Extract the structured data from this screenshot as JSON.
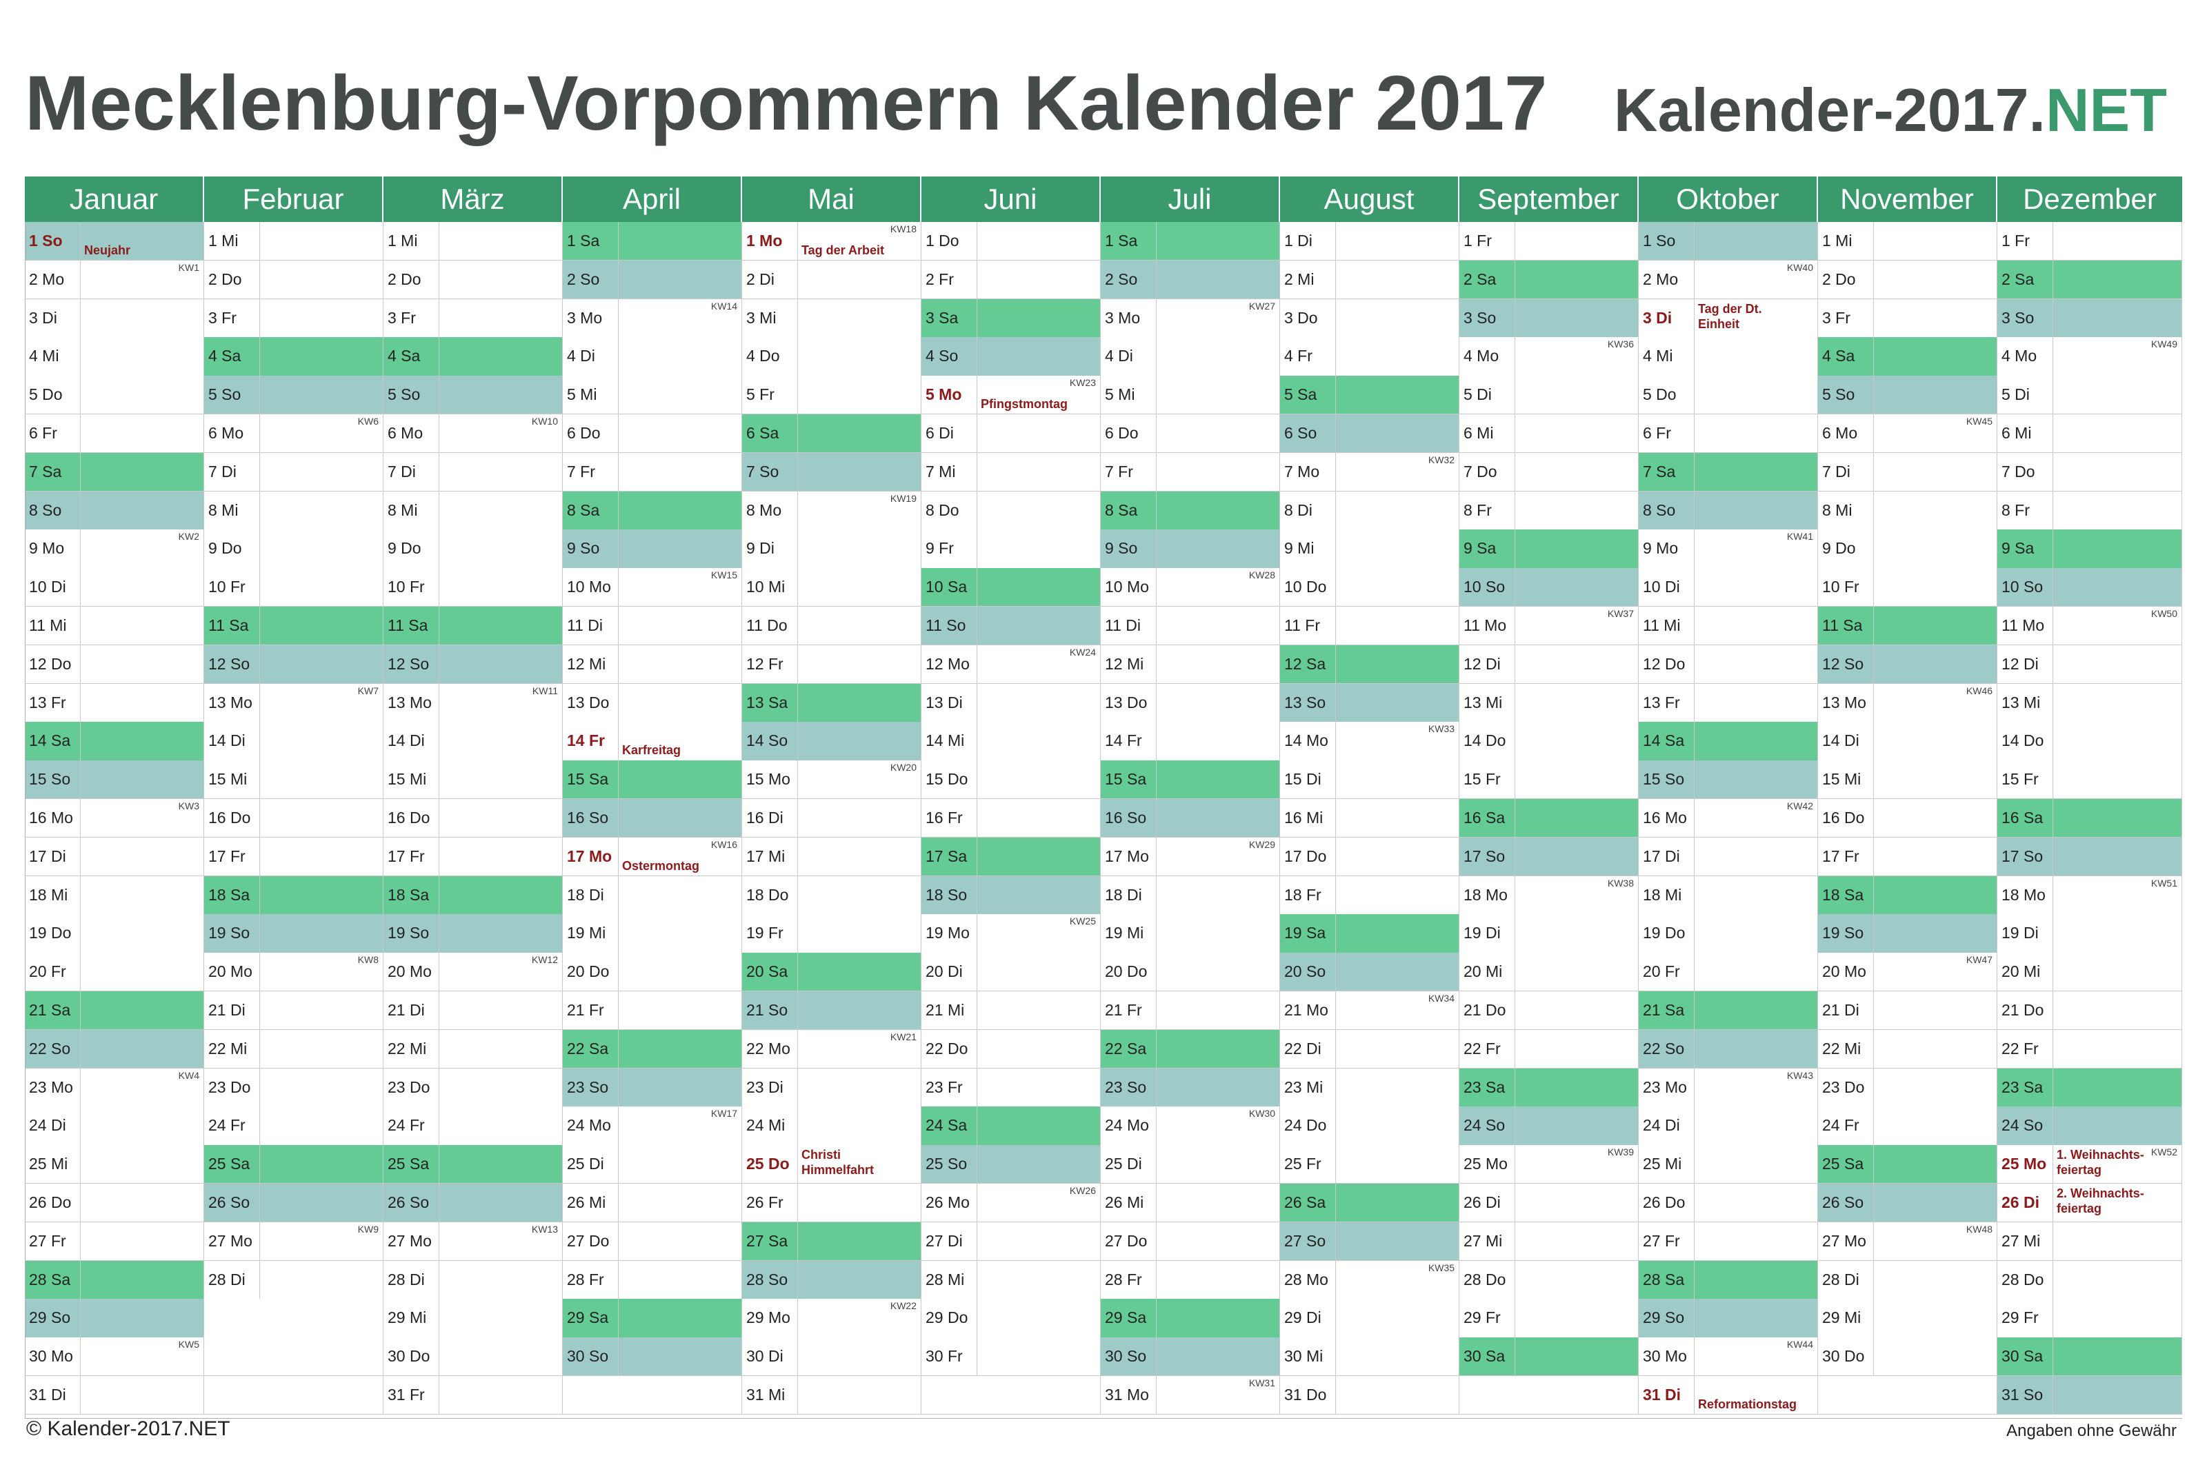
{
  "title": "Mecklenburg-Vorpommern Kalender 2017",
  "brand": {
    "prefix": "Kalender-2017.",
    "suffix": "NET"
  },
  "footer": {
    "copyright": "© Kalender-2017.NET",
    "disclaimer": "Angaben ohne Gewähr"
  },
  "colors": {
    "header": "#3a9a6d",
    "saturday": "#64cb95",
    "sunday": "#9ecbc8",
    "holiday_text": "#8b1a1a"
  },
  "year": 2017,
  "months": [
    {
      "name": "Januar",
      "days": 31,
      "start": 6
    },
    {
      "name": "Februar",
      "days": 28,
      "start": 2
    },
    {
      "name": "März",
      "days": 31,
      "start": 2
    },
    {
      "name": "April",
      "days": 30,
      "start": 5
    },
    {
      "name": "Mai",
      "days": 31,
      "start": 0
    },
    {
      "name": "Juni",
      "days": 30,
      "start": 3
    },
    {
      "name": "Juli",
      "days": 31,
      "start": 5
    },
    {
      "name": "August",
      "days": 31,
      "start": 1
    },
    {
      "name": "September",
      "days": 30,
      "start": 4
    },
    {
      "name": "Oktober",
      "days": 31,
      "start": 6
    },
    {
      "name": "November",
      "days": 30,
      "start": 2
    },
    {
      "name": "Dezember",
      "days": 31,
      "start": 4
    }
  ],
  "weekdays": [
    "Mo",
    "Di",
    "Mi",
    "Do",
    "Fr",
    "Sa",
    "So"
  ],
  "week_prefix": "KW",
  "holidays": [
    {
      "m": 0,
      "d": 1,
      "name": "Neujahr"
    },
    {
      "m": 3,
      "d": 14,
      "name": "Karfreitag"
    },
    {
      "m": 3,
      "d": 17,
      "name": "Ostermontag"
    },
    {
      "m": 4,
      "d": 1,
      "name": "Tag der Arbeit"
    },
    {
      "m": 4,
      "d": 25,
      "name": "Christi Himmelfahrt"
    },
    {
      "m": 5,
      "d": 5,
      "name": "Pfingstmontag"
    },
    {
      "m": 9,
      "d": 3,
      "name": "Tag der Dt. Einheit"
    },
    {
      "m": 9,
      "d": 31,
      "name": "Reformationstag"
    },
    {
      "m": 11,
      "d": 25,
      "name": "1. Weihnachts-feiertag"
    },
    {
      "m": 11,
      "d": 26,
      "name": "2. Weihnachts-feiertag"
    }
  ]
}
